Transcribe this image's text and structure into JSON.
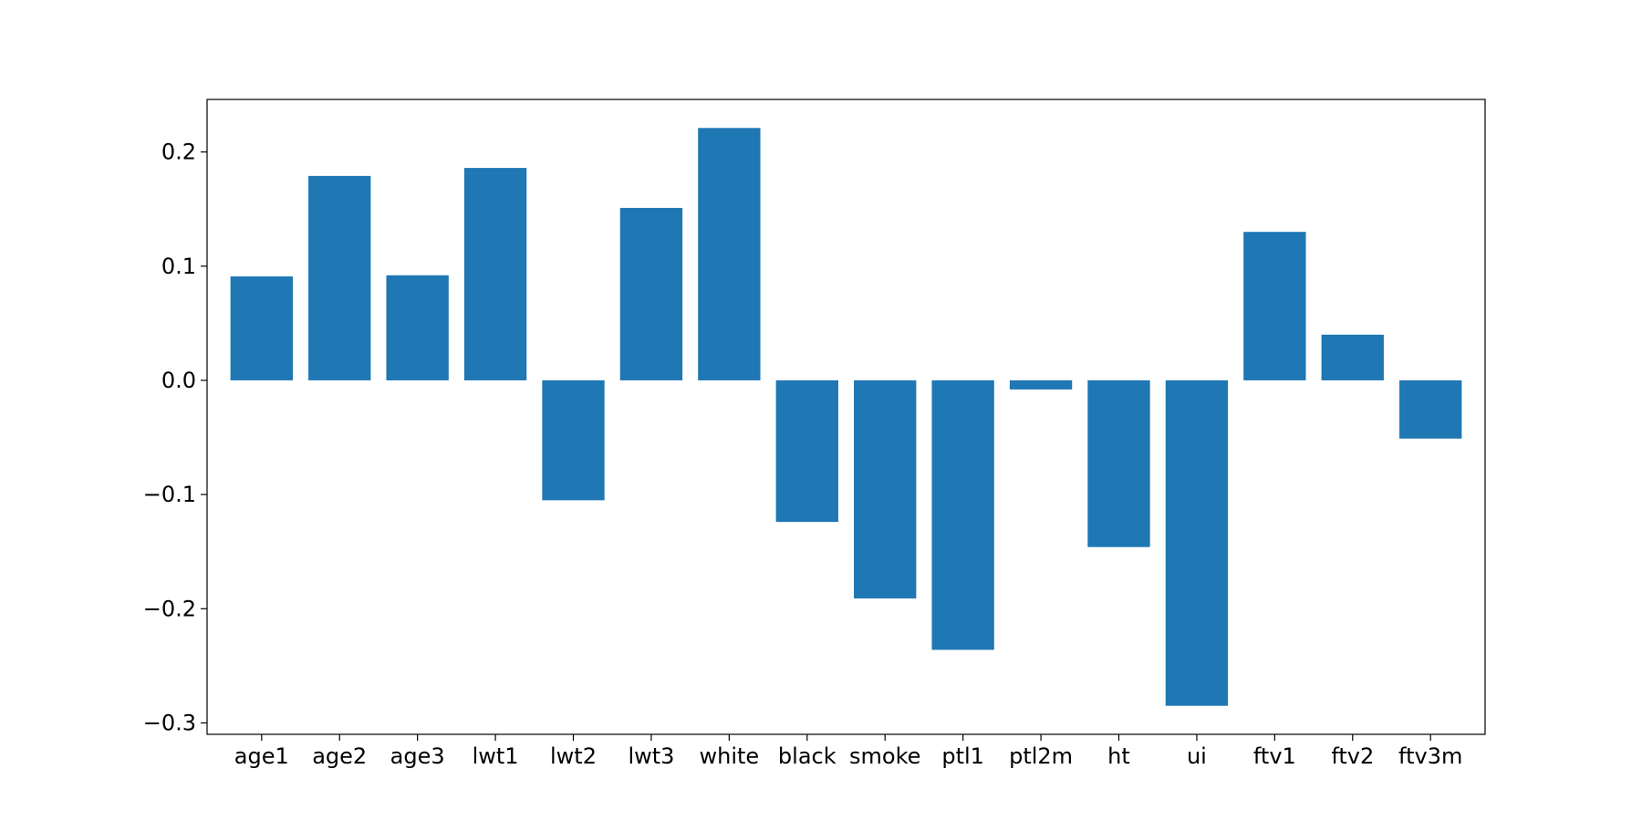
{
  "chart_data": {
    "type": "bar",
    "categories": [
      "age1",
      "age2",
      "age3",
      "lwt1",
      "lwt2",
      "lwt3",
      "white",
      "black",
      "smoke",
      "ptl1",
      "ptl2m",
      "ht",
      "ui",
      "ftv1",
      "ftv2",
      "ftv3m"
    ],
    "values": [
      0.091,
      0.179,
      0.092,
      0.186,
      -0.105,
      0.151,
      0.221,
      -0.124,
      -0.191,
      -0.236,
      -0.008,
      -0.146,
      -0.285,
      0.13,
      0.04,
      -0.051
    ],
    "ylim": [
      -0.31,
      0.246
    ],
    "yticks": [
      -0.3,
      -0.2,
      -0.1,
      0.0,
      0.1,
      0.2
    ],
    "ytick_labels": [
      "−0.3",
      "−0.2",
      "−0.1",
      "0.0",
      "0.1",
      "0.2"
    ],
    "bar_color": "#1f77b4",
    "grid": false,
    "title": "",
    "xlabel": "",
    "ylabel": ""
  }
}
